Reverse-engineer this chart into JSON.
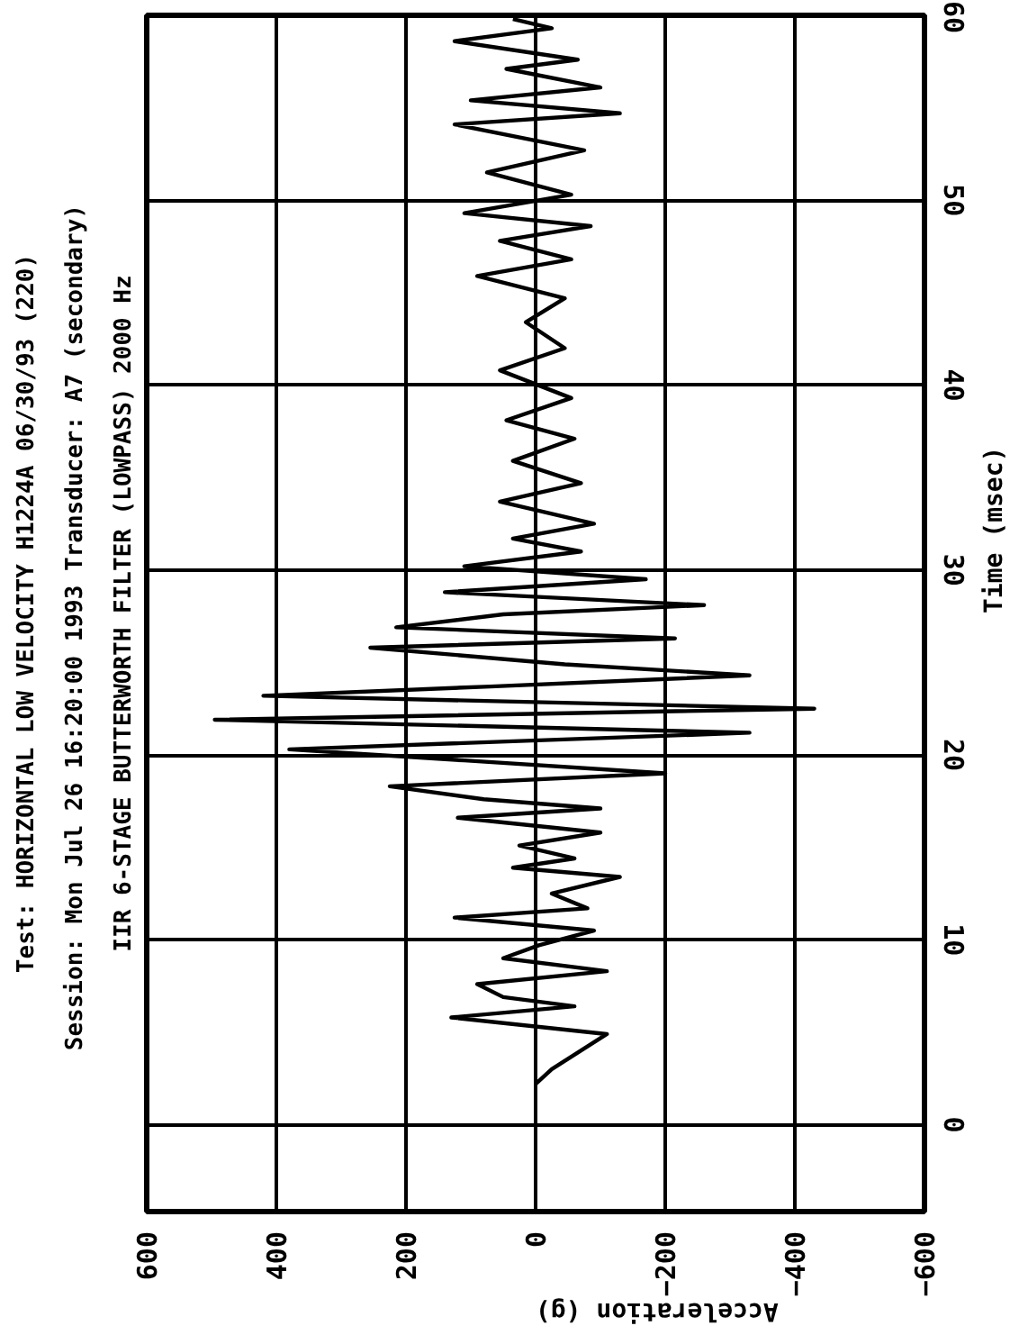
{
  "chart_data": {
    "type": "line",
    "orientation": "horizontal",
    "title": "Test: HORIZONTAL LOW VELOCITY H1224A 06/30/93 (220)",
    "subtitle": "Session: Mon Jul 26 16:20:00 1993   Transducer: A7 (secondary)",
    "annotations": [
      "IIR 6-STAGE BUTTERWORTH FILTER (LOWPASS) 2000 Hz"
    ],
    "xlabel": "Acceleration (g)",
    "ylabel": "Time (msec)",
    "x": [
      2.2,
      3.0,
      4.9,
      5.8,
      6.4,
      6.9,
      7.6,
      8.3,
      9.0,
      9.7,
      10.5,
      11.2,
      11.7,
      12.5,
      13.4,
      13.9,
      14.4,
      15.1,
      15.8,
      16.6,
      17.1,
      17.6,
      18.3,
      19.0,
      19.7,
      20.3,
      21.2,
      21.9,
      22.5,
      23.2,
      23.7,
      24.3,
      24.9,
      25.8,
      26.3,
      26.9,
      27.6,
      28.1,
      28.8,
      29.5,
      30.2,
      31.0,
      31.7,
      32.5,
      33.7,
      34.7,
      35.9,
      37.1,
      38.1,
      39.3,
      40.8,
      42.0,
      43.4,
      44.7,
      45.9,
      46.8,
      47.8,
      48.6,
      49.3,
      50.3,
      51.5,
      52.7,
      54.1,
      54.7,
      55.4,
      56.1,
      57.1,
      57.6,
      58.6,
      59.3,
      59.8
    ],
    "series": [
      {
        "color": "#000000",
        "values": [
          0,
          -25,
          -110,
          130,
          -60,
          50,
          90,
          -110,
          50,
          -5,
          -90,
          125,
          -80,
          -25,
          -130,
          35,
          -60,
          25,
          -100,
          120,
          -100,
          80,
          225,
          -200,
          110,
          380,
          -330,
          495,
          -430,
          420,
          70,
          -330,
          -45,
          255,
          -215,
          215,
          50,
          -260,
          140,
          -170,
          110,
          -70,
          35,
          -90,
          55,
          -70,
          35,
          -60,
          45,
          -55,
          55,
          -45,
          15,
          -45,
          90,
          -55,
          55,
          -85,
          110,
          -55,
          75,
          -75,
          125,
          -130,
          100,
          -100,
          45,
          -65,
          125,
          -25,
          35
        ]
      }
    ],
    "xlim": [
      600,
      -600
    ],
    "xticks": [
      600,
      400,
      200,
      0,
      -200,
      -400,
      -600
    ],
    "ylim": [
      -4.7,
      60
    ],
    "yticks": [
      0,
      10,
      20,
      30,
      40,
      50,
      60
    ],
    "grid": true,
    "marker": "none",
    "line_style": "solid"
  }
}
